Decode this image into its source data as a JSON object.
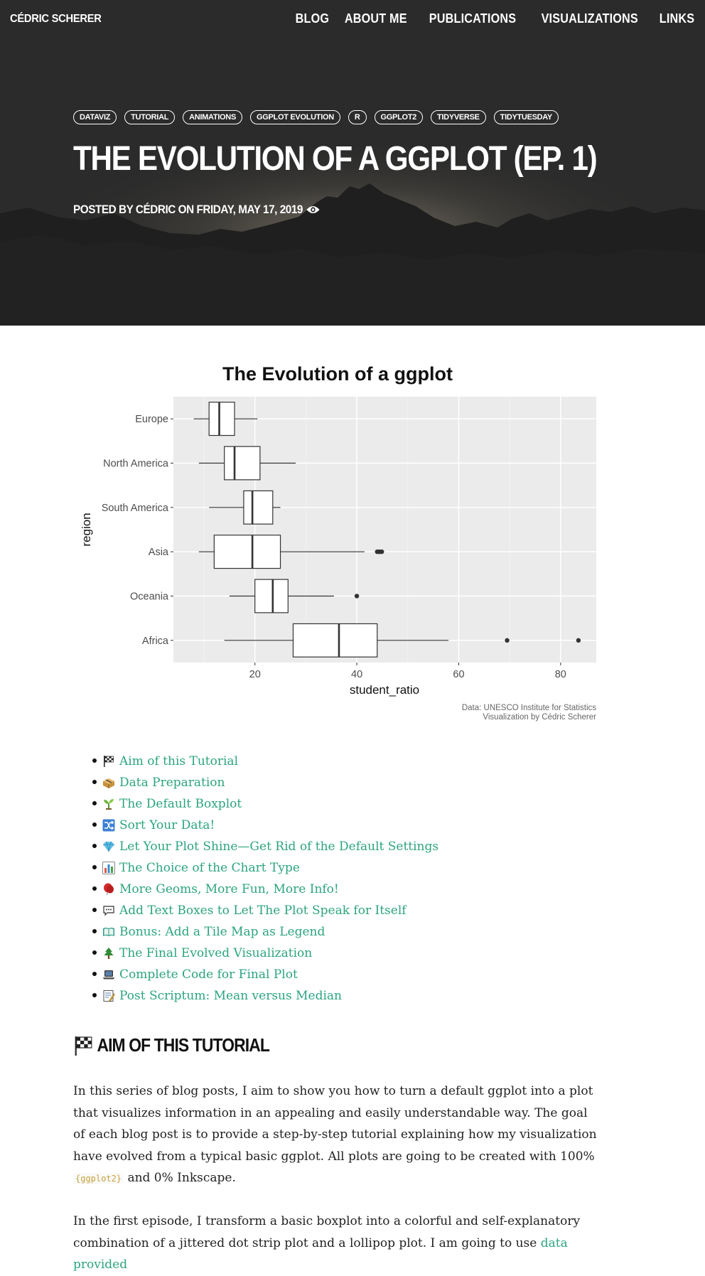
{
  "site": {
    "brand": "CÉDRIC SCHERER",
    "nav": [
      "BLOG",
      "ABOUT ME",
      "PUBLICATIONS",
      "VISUALIZATIONS",
      "LINKS"
    ]
  },
  "post": {
    "tags": [
      "DATAVIZ",
      "TUTORIAL",
      "ANIMATIONS",
      "GGPLOT EVOLUTION",
      "R",
      "GGPLOT2",
      "TIDYVERSE",
      "TIDYTUESDAY"
    ],
    "title": "THE EVOLUTION OF A GGPLOT (EP. 1)",
    "meta": "POSTED BY CÉDRIC ON FRIDAY, MAY 17, 2019"
  },
  "chart_data": {
    "type": "boxplot",
    "title": "The Evolution of a ggplot",
    "xlabel": "student_ratio",
    "ylabel": "region",
    "xlim": [
      4,
      87
    ],
    "x_ticks": [
      20,
      40,
      60,
      80
    ],
    "grid": true,
    "caption": [
      "Data: UNESCO Institute for Statistics",
      "Visualization by Cédric Scherer"
    ],
    "categories": [
      "Europe",
      "North America",
      "South America",
      "Asia",
      "Oceania",
      "Africa"
    ],
    "boxes": [
      {
        "region": "Europe",
        "min": 8,
        "q1": 11,
        "median": 13,
        "q3": 16,
        "max": 20.5,
        "outliers": []
      },
      {
        "region": "North America",
        "min": 9,
        "q1": 14,
        "median": 16,
        "q3": 21,
        "max": 28,
        "outliers": []
      },
      {
        "region": "South America",
        "min": 11,
        "q1": 17.8,
        "median": 19.5,
        "q3": 23.5,
        "max": 25,
        "outliers": []
      },
      {
        "region": "Asia",
        "min": 9,
        "q1": 12,
        "median": 19.5,
        "q3": 25,
        "max": 41.5,
        "outliers": [
          44,
          44.3,
          44.6,
          44.9
        ]
      },
      {
        "region": "Oceania",
        "min": 15,
        "q1": 20,
        "median": 23.5,
        "q3": 26.5,
        "max": 35.5,
        "outliers": [
          40
        ]
      },
      {
        "region": "Africa",
        "min": 14,
        "q1": 27.5,
        "median": 36.5,
        "q3": 44,
        "max": 58,
        "outliers": [
          69.5,
          83.5
        ]
      }
    ]
  },
  "toc": [
    {
      "icon": "checkered-flag-icon",
      "label": "Aim of this Tutorial"
    },
    {
      "icon": "package-icon",
      "label": "Data Preparation"
    },
    {
      "icon": "seedling-icon",
      "label": "The Default Boxplot"
    },
    {
      "icon": "shuffle-icon",
      "label": "Sort Your Data!"
    },
    {
      "icon": "gem-icon",
      "label": "Let Your Plot Shine—Get Rid of the Default Settings"
    },
    {
      "icon": "bar-chart-icon",
      "label": "The Choice of the Chart Type"
    },
    {
      "icon": "balloon-icon",
      "label": "More Geoms, More Fun, More Info!"
    },
    {
      "icon": "speech-bubble-icon",
      "label": "Add Text Boxes to Let The Plot Speak for Itself"
    },
    {
      "icon": "book-icon",
      "label": "Bonus: Add a Tile Map as Legend"
    },
    {
      "icon": "tree-icon",
      "label": "The Final Evolved Visualization"
    },
    {
      "icon": "laptop-icon",
      "label": "Complete Code for Final Plot"
    },
    {
      "icon": "memo-icon",
      "label": "Post Scriptum: Mean versus Median"
    }
  ],
  "section": {
    "title": "AIM OF THIS TUTORIAL",
    "p1_text": "In this series of blog posts, I aim to show you how to turn a default ggplot into a plot that visualizes information in an appealing and easily understandable way. The goal of each blog post is to provide a step-by-step tutorial explaining how my visualization have evolved from a typical basic ggplot. All plots are going to be created with 100%",
    "p1_code": "{ggplot2}",
    "p1_tail": "and 0% Inkscape.",
    "p2_text": "In the first episode, I transform a basic boxplot into a colorful and self-explanatory combination of a jittered dot strip plot and a lollipop plot. I am going to use",
    "p2_link": "data provided"
  }
}
